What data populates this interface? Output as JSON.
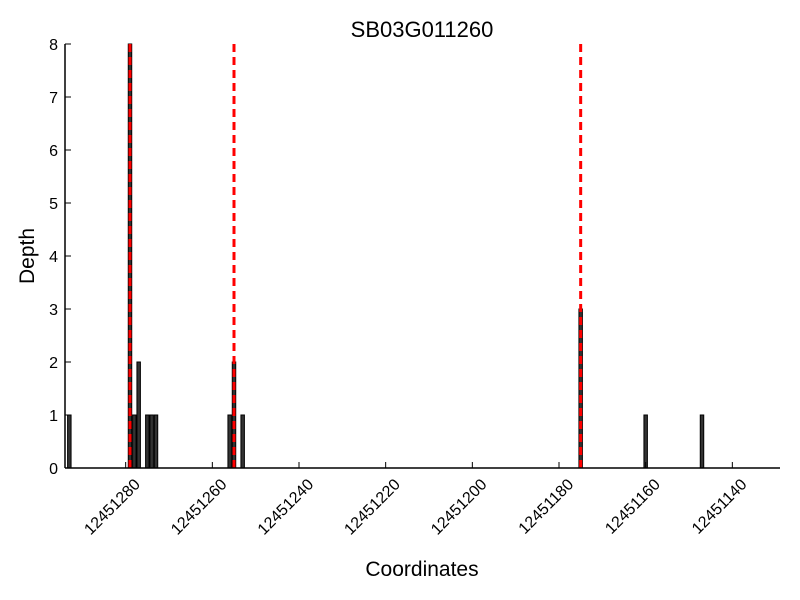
{
  "chart_data": {
    "type": "bar",
    "title": "SB03G011260",
    "xlabel": "Coordinates",
    "ylabel": "Depth",
    "x_axis_reversed": true,
    "xlim": [
      12451294,
      12451129
    ],
    "ylim": [
      0,
      8
    ],
    "xticks": [
      12451280,
      12451260,
      12451240,
      12451220,
      12451200,
      12451180,
      12451160,
      12451140
    ],
    "yticks": [
      0,
      1,
      2,
      3,
      4,
      5,
      6,
      7,
      8
    ],
    "grid": false,
    "bar_color": "#333333",
    "marker_line_color": "#ff0000",
    "bars": [
      {
        "x": 12451293,
        "y": 1
      },
      {
        "x": 12451279,
        "y": 8
      },
      {
        "x": 12451278,
        "y": 1
      },
      {
        "x": 12451277,
        "y": 2
      },
      {
        "x": 12451275,
        "y": 1
      },
      {
        "x": 12451274,
        "y": 1
      },
      {
        "x": 12451273,
        "y": 1
      },
      {
        "x": 12451256,
        "y": 1
      },
      {
        "x": 12451255,
        "y": 2
      },
      {
        "x": 12451253,
        "y": 1
      },
      {
        "x": 12451175,
        "y": 3
      },
      {
        "x": 12451160,
        "y": 1
      },
      {
        "x": 12451147,
        "y": 1
      }
    ],
    "marker_lines": [
      12451279,
      12451255,
      12451175
    ]
  }
}
